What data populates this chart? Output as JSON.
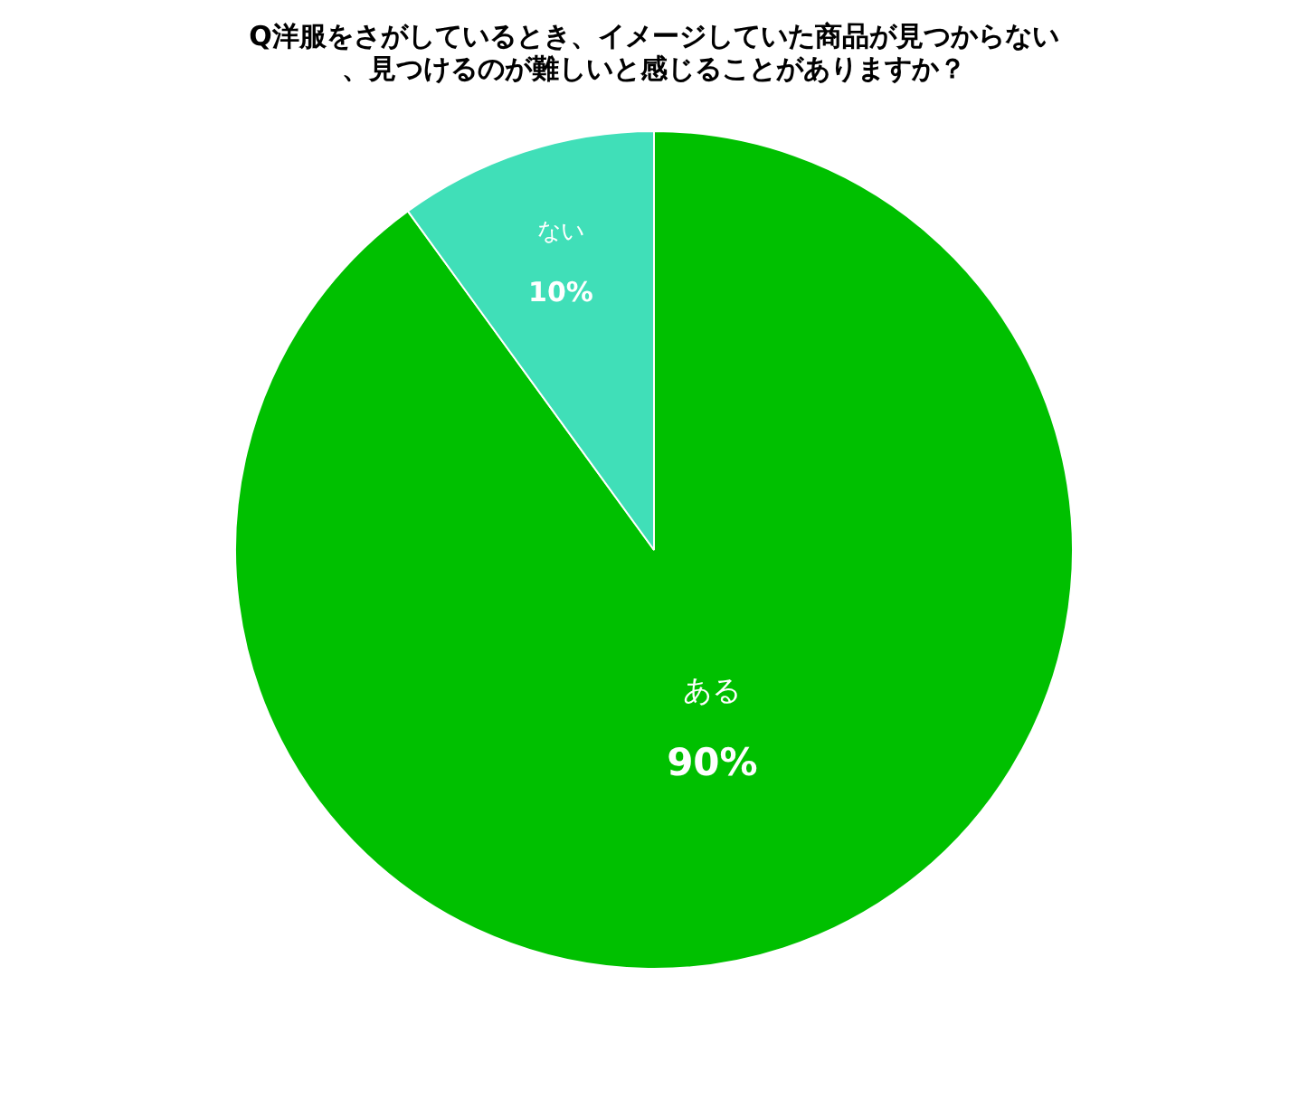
{
  "chart_data": {
    "type": "pie",
    "title": "Q洋服をさがしているとき、イメージしていた商品が見つからない、見つけるのが難しいと感じることがありますか？",
    "categories": [
      "ある",
      "ない"
    ],
    "values": [
      90,
      10
    ],
    "colors": [
      "#00c000",
      "#40dfb8"
    ],
    "value_labels": [
      "90%",
      "10%"
    ],
    "legend": false
  }
}
